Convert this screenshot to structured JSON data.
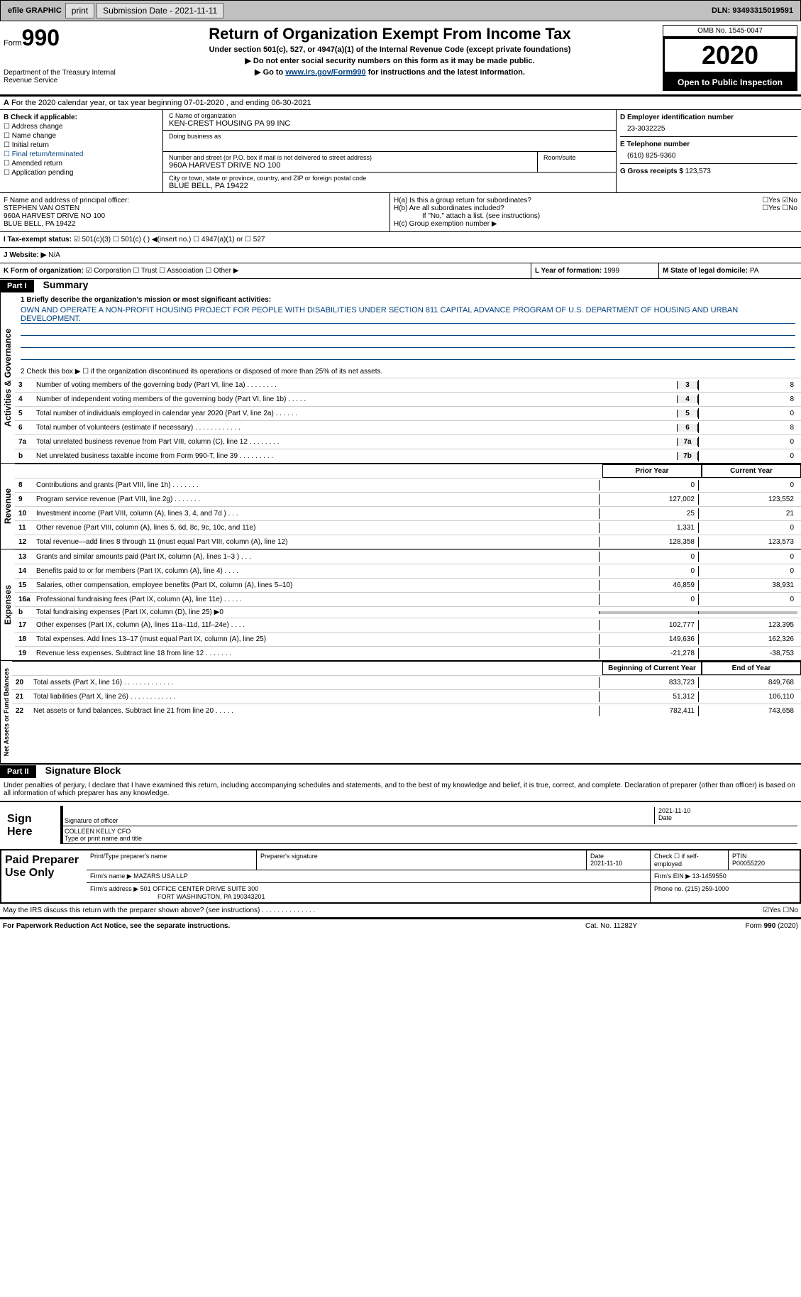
{
  "topbar": {
    "efile_label": "efile GRAPHIC",
    "print_btn": "print",
    "submission_label": "Submission Date - 2021-11-11",
    "dln_label": "DLN: 93493315019591"
  },
  "header": {
    "form_prefix": "Form",
    "form_number": "990",
    "dept": "Department of the Treasury Internal Revenue Service",
    "title": "Return of Organization Exempt From Income Tax",
    "subtitle": "Under section 501(c), 527, or 4947(a)(1) of the Internal Revenue Code (except private foundations)",
    "note1": "▶ Do not enter social security numbers on this form as it may be made public.",
    "note2_pre": "▶ Go to ",
    "note2_link": "www.irs.gov/Form990",
    "note2_post": " for instructions and the latest information.",
    "omb": "OMB No. 1545-0047",
    "year": "2020",
    "open": "Open to Public Inspection"
  },
  "period": {
    "text": "For the 2020 calendar year, or tax year beginning 07-01-2020    , and ending 06-30-2021",
    "prefix": "A"
  },
  "section_b": {
    "title": "B Check if applicable:",
    "items": [
      "☐ Address change",
      "☐ Name change",
      "☐ Initial return",
      "☐ Final return/terminated",
      "☐ Amended return",
      "☐ Application pending"
    ]
  },
  "section_c": {
    "name_label": "C Name of organization",
    "name": "KEN-CREST HOUSING PA 99 INC",
    "dba_label": "Doing business as",
    "dba": "",
    "street_label": "Number and street (or P.O. box if mail is not delivered to street address)",
    "street": "960A HARVEST DRIVE NO 100",
    "room_label": "Room/suite",
    "city_label": "City or town, state or province, country, and ZIP or foreign postal code",
    "city": "BLUE BELL, PA  19422"
  },
  "section_d": {
    "label": "D Employer identification number",
    "value": "23-3032225"
  },
  "section_e": {
    "label": "E Telephone number",
    "value": "(610) 825-9360"
  },
  "section_g": {
    "label": "G Gross receipts $",
    "value": "123,573"
  },
  "section_f": {
    "label": "F  Name and address of principal officer:",
    "name": "STEPHEN VAN OSTEN",
    "addr1": "960A HARVEST DRIVE NO 100",
    "addr2": "BLUE BELL, PA  19422"
  },
  "section_h": {
    "ha": "H(a)   Is this a group return for subordinates?",
    "ha_val": "☐Yes ☑No",
    "hb": "H(b)  Are all subordinates included?",
    "hb_val": "☐Yes ☐No",
    "hb_note": "If \"No,\" attach a list. (see instructions)",
    "hc": "H(c)   Group exemption number ▶"
  },
  "section_i": {
    "label": "I    Tax-exempt status:",
    "opts": "☑ 501(c)(3)    ☐  501(c) (  ) ◀(insert no.)     ☐ 4947(a)(1) or  ☐ 527"
  },
  "section_j": {
    "label": "J   Website: ▶",
    "value": "N/A"
  },
  "section_k": {
    "label": "K Form of organization:",
    "opts": "☑ Corporation  ☐ Trust  ☐ Association  ☐ Other ▶"
  },
  "section_l": {
    "label": "L Year of formation:",
    "value": "1999"
  },
  "section_m": {
    "label": "M State of legal domicile:",
    "value": "PA"
  },
  "part1": {
    "header": "Part I",
    "title": "Summary",
    "q1_label": "1  Briefly describe the organization's mission or most significant activities:",
    "q1_text": "OWN AND OPERATE A NON-PROFIT HOUSING PROJECT FOR PEOPLE WITH DISABILITIES UNDER SECTION 811 CAPITAL ADVANCE PROGRAM OF U.S. DEPARTMENT OF HOUSING AND URBAN DEVELOPMENT.",
    "q2": "2   Check this box ▶ ☐  if the organization discontinued its operations or disposed of more than 25% of its net assets.",
    "governance_label": "Activities & Governance",
    "gov_rows": [
      {
        "n": "3",
        "d": "Number of voting members of the governing body (Part VI, line 1a)   .    .    .    .    .    .    .    .",
        "c": "3",
        "v": "8"
      },
      {
        "n": "4",
        "d": "Number of independent voting members of the governing body (Part VI, line 1b)   .    .    .    .    .",
        "c": "4",
        "v": "8"
      },
      {
        "n": "5",
        "d": "Total number of individuals employed in calendar year 2020 (Part V, line 2a)   .    .    .    .    .    .",
        "c": "5",
        "v": "0"
      },
      {
        "n": "6",
        "d": "Total number of volunteers (estimate if necessary)   .    .    .    .    .    .    .    .    .    .    .    .",
        "c": "6",
        "v": "8"
      },
      {
        "n": "7a",
        "d": "Total unrelated business revenue from Part VIII, column (C), line 12   .    .    .    .    .    .    .    .",
        "c": "7a",
        "v": "0"
      },
      {
        "n": "b",
        "d": "Net unrelated business taxable income from Form 990-T, line 39   .    .    .    .    .    .    .    .    .",
        "c": "7b",
        "v": "0"
      }
    ],
    "col_prior": "Prior Year",
    "col_current": "Current Year",
    "revenue_label": "Revenue",
    "rev_rows": [
      {
        "n": "8",
        "d": "Contributions and grants (Part VIII, line 1h)   .    .    .    .    .    .    .",
        "p": "0",
        "c": "0"
      },
      {
        "n": "9",
        "d": "Program service revenue (Part VIII, line 2g)   .    .    .    .    .    .    .",
        "p": "127,002",
        "c": "123,552"
      },
      {
        "n": "10",
        "d": "Investment income (Part VIII, column (A), lines 3, 4, and 7d )   .    .    .",
        "p": "25",
        "c": "21"
      },
      {
        "n": "11",
        "d": "Other revenue (Part VIII, column (A), lines 5, 6d, 8c, 9c, 10c, and 11e)",
        "p": "1,331",
        "c": "0"
      },
      {
        "n": "12",
        "d": "Total revenue—add lines 8 through 11 (must equal Part VIII, column (A), line 12)",
        "p": "128,358",
        "c": "123,573"
      }
    ],
    "expenses_label": "Expenses",
    "exp_rows": [
      {
        "n": "13",
        "d": "Grants and similar amounts paid (Part IX, column (A), lines 1–3 )   .    .    .",
        "p": "0",
        "c": "0"
      },
      {
        "n": "14",
        "d": "Benefits paid to or for members (Part IX, column (A), line 4)   .    .    .    .",
        "p": "0",
        "c": "0"
      },
      {
        "n": "15",
        "d": "Salaries, other compensation, employee benefits (Part IX, column (A), lines 5–10)",
        "p": "46,859",
        "c": "38,931"
      },
      {
        "n": "16a",
        "d": "Professional fundraising fees (Part IX, column (A), line 11e)   .    .    .    .    .",
        "p": "0",
        "c": "0"
      },
      {
        "n": "b",
        "d": "Total fundraising expenses (Part IX, column (D), line 25) ▶0",
        "p": "",
        "c": "",
        "shaded": true
      },
      {
        "n": "17",
        "d": "Other expenses (Part IX, column (A), lines 11a–11d, 11f–24e)   .    .    .    .",
        "p": "102,777",
        "c": "123,395"
      },
      {
        "n": "18",
        "d": "Total expenses. Add lines 13–17 (must equal Part IX, column (A), line 25)",
        "p": "149,636",
        "c": "162,326"
      },
      {
        "n": "19",
        "d": "Revenue less expenses. Subtract line 18 from line 12   .    .    .    .    .    .    .",
        "p": "-21,278",
        "c": "-38,753"
      }
    ],
    "net_label": "Net Assets or Fund Balances",
    "col_begin": "Beginning of Current Year",
    "col_end": "End of Year",
    "net_rows": [
      {
        "n": "20",
        "d": "Total assets (Part X, line 16)   .    .    .    .    .    .    .    .    .    .    .    .    .",
        "p": "833,723",
        "c": "849,768"
      },
      {
        "n": "21",
        "d": "Total liabilities (Part X, line 26)   .    .    .    .    .    .    .    .    .    .    .    .",
        "p": "51,312",
        "c": "106,110"
      },
      {
        "n": "22",
        "d": "Net assets or fund balances. Subtract line 21 from line 20   .    .    .    .    .",
        "p": "782,411",
        "c": "743,658"
      }
    ]
  },
  "part2": {
    "header": "Part II",
    "title": "Signature Block",
    "declaration": "Under penalties of perjury, I declare that I have examined this return, including accompanying schedules and statements, and to the best of my knowledge and belief, it is true, correct, and complete. Declaration of preparer (other than officer) is based on all information of which preparer has any knowledge.",
    "sign_here": "Sign Here",
    "sig_officer": "Signature of officer",
    "sig_date": "2021-11-10",
    "date_label": "Date",
    "sig_name": "COLLEEN KELLY CFO",
    "sig_name_label": "Type or print name and title",
    "paid_label": "Paid Preparer Use Only",
    "prep_name_label": "Print/Type preparer's name",
    "prep_sig_label": "Preparer's signature",
    "prep_date_label": "Date",
    "prep_date": "2021-11-10",
    "check_label": "Check ☐ if self-employed",
    "ptin_label": "PTIN",
    "ptin": "P00055220",
    "firm_name_label": "Firm's name     ▶",
    "firm_name": "MAZARS USA LLP",
    "firm_ein_label": "Firm's EIN ▶",
    "firm_ein": "13-1459550",
    "firm_addr_label": "Firm's address ▶",
    "firm_addr": "501 OFFICE CENTER DRIVE SUITE 300",
    "firm_addr2": "FORT WASHINGTON, PA  190343201",
    "phone_label": "Phone no.",
    "phone": "(215) 259-1000",
    "discuss": "May the IRS discuss this return with the preparer shown above? (see instructions)   .    .    .    .    .    .    .    .    .    .    .    .    .    .",
    "discuss_val": "☑Yes  ☐No"
  },
  "footer": {
    "left": "For Paperwork Reduction Act Notice, see the separate instructions.",
    "center": "Cat. No. 11282Y",
    "right": "Form 990 (2020)"
  }
}
